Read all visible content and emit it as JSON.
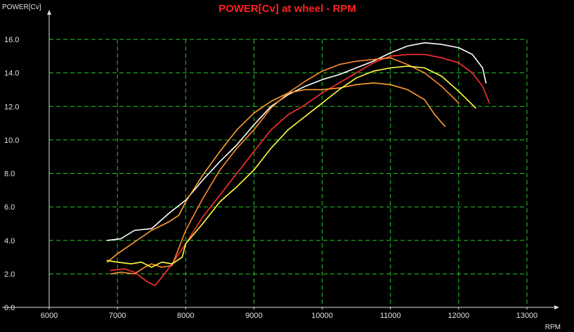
{
  "chart_data": {
    "type": "line",
    "title": "POWER[Cv] at wheel - RPM",
    "ylabel": "POWER[Cv]",
    "xlabel": "RPM",
    "xlim": [
      6000,
      13000
    ],
    "ylim": [
      0,
      16
    ],
    "x_ticks": [
      6000,
      7000,
      8000,
      9000,
      10000,
      11000,
      12000,
      13000
    ],
    "y_ticks": [
      0.0,
      2.0,
      4.0,
      6.0,
      8.0,
      10.0,
      12.0,
      14.0,
      16.0
    ],
    "x_tick_labels": [
      "6000",
      "7000",
      "8000",
      "9000",
      "10000",
      "11000",
      "12000",
      "13000"
    ],
    "y_tick_labels": [
      "0.0",
      "2.0",
      "4.0",
      "6.0",
      "8.0",
      "10.0",
      "12.0",
      "14.0",
      "16.0"
    ],
    "grid": true,
    "colors": {
      "background": "#000000",
      "title": "#ff2020",
      "axis": "#e0e0e0",
      "grid": "#22cc22",
      "tick_labels": "#e0e0e0"
    },
    "series": [
      {
        "color": "#ffffff",
        "points": [
          [
            6850,
            4.0
          ],
          [
            7050,
            4.1
          ],
          [
            7250,
            4.6
          ],
          [
            7500,
            4.7
          ],
          [
            7750,
            5.6
          ],
          [
            8000,
            6.4
          ],
          [
            8250,
            7.6
          ],
          [
            8500,
            8.7
          ],
          [
            8750,
            9.7
          ],
          [
            9000,
            10.9
          ],
          [
            9250,
            12.0
          ],
          [
            9500,
            12.7
          ],
          [
            9750,
            13.2
          ],
          [
            10000,
            13.6
          ],
          [
            10250,
            13.9
          ],
          [
            10500,
            14.3
          ],
          [
            10750,
            14.7
          ],
          [
            11000,
            15.2
          ],
          [
            11250,
            15.6
          ],
          [
            11500,
            15.8
          ],
          [
            11750,
            15.7
          ],
          [
            12000,
            15.5
          ],
          [
            12200,
            15.1
          ],
          [
            12350,
            14.3
          ],
          [
            12400,
            13.4
          ]
        ]
      },
      {
        "color": "#ff3030",
        "points": [
          [
            6900,
            2.2
          ],
          [
            7100,
            2.3
          ],
          [
            7250,
            2.1
          ],
          [
            7350,
            1.8
          ],
          [
            7450,
            1.5
          ],
          [
            7550,
            1.3
          ],
          [
            7650,
            1.8
          ],
          [
            7800,
            2.6
          ],
          [
            8000,
            3.8
          ],
          [
            8250,
            5.4
          ],
          [
            8500,
            6.7
          ],
          [
            8750,
            8.0
          ],
          [
            9000,
            9.3
          ],
          [
            9250,
            10.6
          ],
          [
            9500,
            11.5
          ],
          [
            9750,
            12.1
          ],
          [
            10000,
            12.8
          ],
          [
            10250,
            13.4
          ],
          [
            10500,
            14.0
          ],
          [
            10750,
            14.6
          ],
          [
            11000,
            15.0
          ],
          [
            11250,
            15.1
          ],
          [
            11500,
            15.1
          ],
          [
            11750,
            14.9
          ],
          [
            12000,
            14.6
          ],
          [
            12200,
            14.0
          ],
          [
            12350,
            13.2
          ],
          [
            12450,
            12.2
          ]
        ]
      },
      {
        "color": "#ffa030",
        "points": [
          [
            6850,
            2.7
          ],
          [
            7000,
            3.2
          ],
          [
            7250,
            3.9
          ],
          [
            7500,
            4.6
          ],
          [
            7750,
            5.1
          ],
          [
            7900,
            5.5
          ],
          [
            8000,
            6.3
          ],
          [
            8250,
            7.9
          ],
          [
            8500,
            9.3
          ],
          [
            8750,
            10.6
          ],
          [
            9000,
            11.6
          ],
          [
            9250,
            12.3
          ],
          [
            9500,
            12.8
          ],
          [
            9750,
            13.0
          ],
          [
            10000,
            13.0
          ],
          [
            10250,
            13.1
          ],
          [
            10500,
            13.3
          ],
          [
            10750,
            13.4
          ],
          [
            11000,
            13.3
          ],
          [
            11250,
            13.0
          ],
          [
            11500,
            12.4
          ],
          [
            11650,
            11.5
          ],
          [
            11800,
            10.8
          ]
        ]
      },
      {
        "color": "#ff8a30",
        "points": [
          [
            6900,
            2.0
          ],
          [
            7050,
            2.1
          ],
          [
            7250,
            2.0
          ],
          [
            7400,
            2.4
          ],
          [
            7500,
            2.6
          ],
          [
            7650,
            2.4
          ],
          [
            7800,
            2.5
          ],
          [
            8000,
            4.6
          ],
          [
            8250,
            6.5
          ],
          [
            8500,
            8.2
          ],
          [
            8750,
            9.5
          ],
          [
            9000,
            10.6
          ],
          [
            9250,
            11.9
          ],
          [
            9500,
            12.8
          ],
          [
            9750,
            13.5
          ],
          [
            10000,
            14.1
          ],
          [
            10250,
            14.5
          ],
          [
            10500,
            14.7
          ],
          [
            10750,
            14.8
          ],
          [
            11000,
            14.9
          ],
          [
            11250,
            14.5
          ],
          [
            11500,
            14.0
          ],
          [
            11750,
            13.2
          ],
          [
            12000,
            12.2
          ]
        ]
      },
      {
        "color": "#ffff40",
        "points": [
          [
            6850,
            2.8
          ],
          [
            7000,
            2.7
          ],
          [
            7200,
            2.6
          ],
          [
            7350,
            2.7
          ],
          [
            7500,
            2.4
          ],
          [
            7650,
            2.7
          ],
          [
            7800,
            2.6
          ],
          [
            7950,
            3.0
          ],
          [
            8000,
            3.8
          ],
          [
            8250,
            5.0
          ],
          [
            8500,
            6.3
          ],
          [
            8750,
            7.2
          ],
          [
            9000,
            8.2
          ],
          [
            9250,
            9.5
          ],
          [
            9500,
            10.6
          ],
          [
            9750,
            11.4
          ],
          [
            10000,
            12.2
          ],
          [
            10250,
            13.0
          ],
          [
            10500,
            13.7
          ],
          [
            10750,
            14.1
          ],
          [
            11000,
            14.3
          ],
          [
            11250,
            14.4
          ],
          [
            11500,
            14.3
          ],
          [
            11750,
            13.8
          ],
          [
            12000,
            12.9
          ],
          [
            12250,
            11.9
          ]
        ]
      }
    ]
  }
}
